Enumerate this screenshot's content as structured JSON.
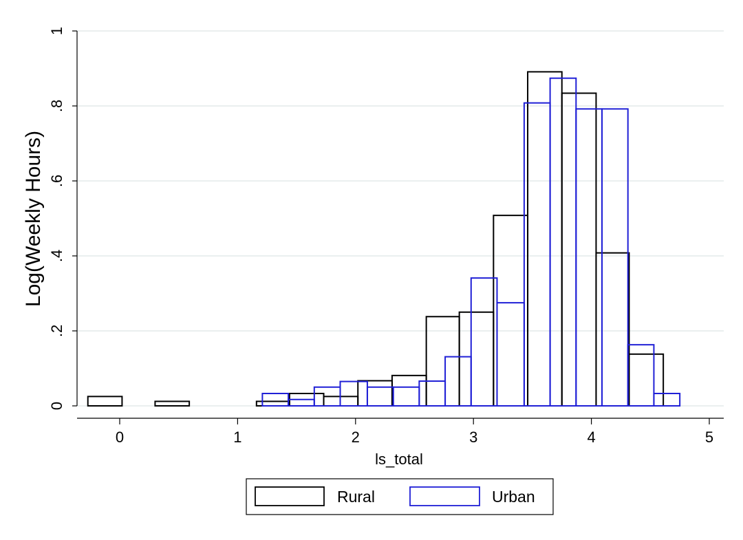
{
  "chart_data": {
    "type": "bar",
    "xlabel": "ls_total",
    "ylabel": "Log(Weekly Hours)",
    "xlim": [
      -0.28,
      5.05
    ],
    "ylim": [
      0,
      1
    ],
    "x_ticks": [
      0,
      1,
      2,
      3,
      4,
      5
    ],
    "x_tick_labels": [
      "0",
      "1",
      "2",
      "3",
      "4",
      "5"
    ],
    "y_ticks": [
      0,
      0.2,
      0.4,
      0.6,
      0.8,
      1
    ],
    "y_tick_labels": [
      "0",
      ".2",
      ".4",
      ".6",
      ".8",
      "1"
    ],
    "grid": true,
    "legend_position": "bottom",
    "series": [
      {
        "name": "Rural",
        "color": "#000000",
        "bins": [
          {
            "x0": -0.27,
            "x1": 0.02,
            "value": 0.025
          },
          {
            "x0": 0.3,
            "x1": 0.59,
            "value": 0.012
          },
          {
            "x0": 1.16,
            "x1": 1.44,
            "value": 0.012
          },
          {
            "x0": 1.44,
            "x1": 1.73,
            "value": 0.033
          },
          {
            "x0": 1.73,
            "x1": 2.02,
            "value": 0.025
          },
          {
            "x0": 2.02,
            "x1": 2.31,
            "value": 0.067
          },
          {
            "x0": 2.31,
            "x1": 2.6,
            "value": 0.081
          },
          {
            "x0": 2.6,
            "x1": 2.88,
            "value": 0.238
          },
          {
            "x0": 2.88,
            "x1": 3.17,
            "value": 0.25
          },
          {
            "x0": 3.17,
            "x1": 3.46,
            "value": 0.508
          },
          {
            "x0": 3.46,
            "x1": 3.75,
            "value": 0.891
          },
          {
            "x0": 3.75,
            "x1": 4.04,
            "value": 0.834
          },
          {
            "x0": 4.04,
            "x1": 4.32,
            "value": 0.408
          },
          {
            "x0": 4.32,
            "x1": 4.61,
            "value": 0.138
          }
        ]
      },
      {
        "name": "Urban",
        "color": "#1f1fd6",
        "bins": [
          {
            "x0": 1.21,
            "x1": 1.43,
            "value": 0.033
          },
          {
            "x0": 1.43,
            "x1": 1.65,
            "value": 0.017
          },
          {
            "x0": 1.65,
            "x1": 1.87,
            "value": 0.05
          },
          {
            "x0": 1.87,
            "x1": 2.1,
            "value": 0.065
          },
          {
            "x0": 2.1,
            "x1": 2.32,
            "value": 0.05
          },
          {
            "x0": 2.32,
            "x1": 2.54,
            "value": 0.05
          },
          {
            "x0": 2.54,
            "x1": 2.76,
            "value": 0.066
          },
          {
            "x0": 2.76,
            "x1": 2.98,
            "value": 0.131
          },
          {
            "x0": 2.98,
            "x1": 3.2,
            "value": 0.341
          },
          {
            "x0": 3.2,
            "x1": 3.43,
            "value": 0.275
          },
          {
            "x0": 3.43,
            "x1": 3.65,
            "value": 0.808
          },
          {
            "x0": 3.65,
            "x1": 3.87,
            "value": 0.874
          },
          {
            "x0": 3.87,
            "x1": 4.09,
            "value": 0.792
          },
          {
            "x0": 4.09,
            "x1": 4.31,
            "value": 0.792
          },
          {
            "x0": 4.31,
            "x1": 4.53,
            "value": 0.163
          },
          {
            "x0": 4.53,
            "x1": 4.75,
            "value": 0.033
          }
        ]
      }
    ]
  }
}
